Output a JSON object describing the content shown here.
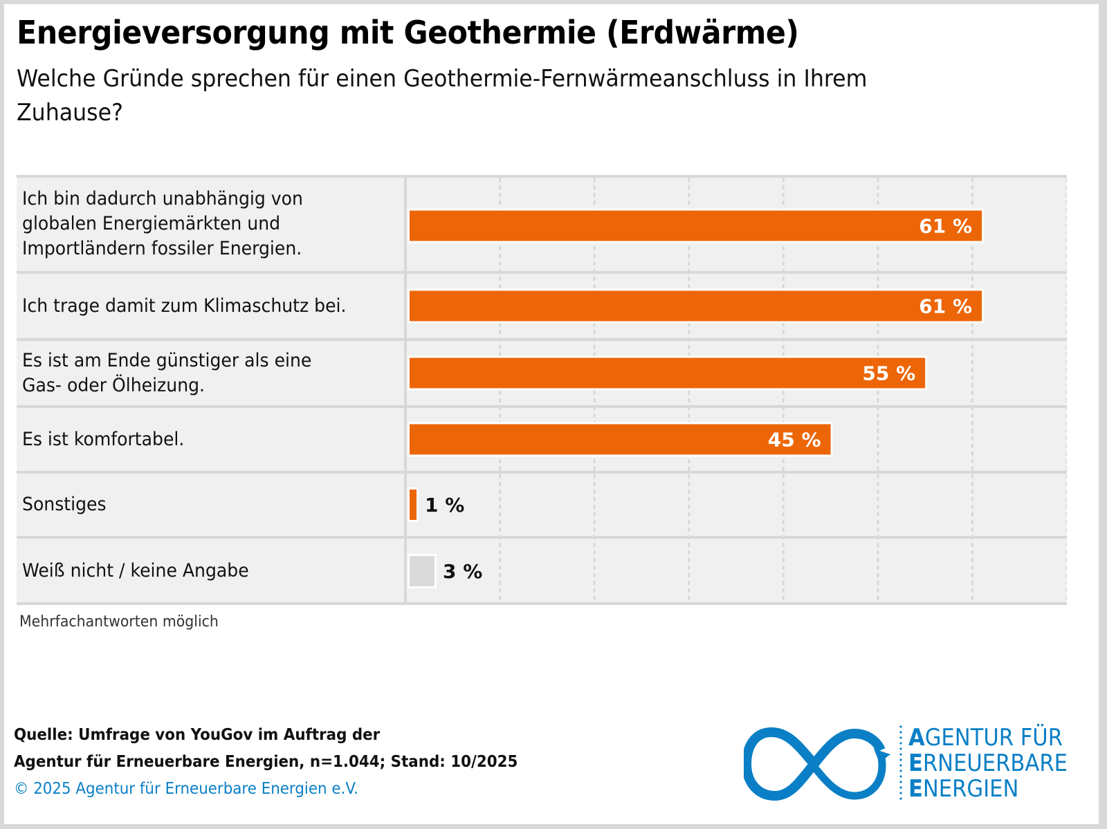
{
  "header": {
    "title": "Energieversorgung mit Geothermie (Erdwärme)",
    "subtitle": "Welche Gründe sprechen für einen Geothermie-Fernwärmeanschluss in Ihrem Zuhause?"
  },
  "colors": {
    "bar_primary": "#ec6608",
    "bar_neutral": "#dadada",
    "brand_blue": "#0a7fc6",
    "chart_background": "#f0f0f0",
    "grid": "#d8d8d8"
  },
  "chart_data": {
    "type": "bar",
    "orientation": "horizontal",
    "title": "Energieversorgung mit Geothermie (Erdwärme)",
    "subtitle": "Welche Gründe sprechen für einen Geothermie-Fernwärmeanschluss in Ihrem Zuhause?",
    "xlabel": "",
    "ylabel": "",
    "xlim": [
      0,
      70
    ],
    "grid": true,
    "grid_step": 10,
    "unit": "%",
    "categories": [
      "Ich bin dadurch unabhängig von\nglobalen Energiemärkten und\nImportländern fossiler Energien.",
      "Ich trage damit zum Klimaschutz bei.",
      "Es ist am Ende günstiger als eine\nGas- oder Ölheizung.",
      "Es ist komfortabel.",
      "Sonstiges",
      "Weiß nicht / keine Angabe"
    ],
    "values": [
      61,
      61,
      55,
      45,
      1,
      3
    ],
    "value_labels": [
      "61 %",
      "61 %",
      "55 %",
      "45 %",
      "1 %",
      "3 %"
    ],
    "bar_colors": [
      "primary",
      "primary",
      "primary",
      "primary",
      "primary",
      "neutral"
    ],
    "note": "Mehrfachantworten möglich"
  },
  "footer": {
    "source_line1": "Quelle: Umfrage von YouGov im Auftrag der",
    "source_line2": "Agentur für Erneuerbare Energien, n=1.044; Stand: 10/2025",
    "copyright": "© 2025 Agentur für Erneuerbare Energien e.V."
  },
  "logo": {
    "icon": "infinity-arrow-icon",
    "line1_initial": "A",
    "line1_rest": "GENTUR FÜR",
    "line2_initial": "E",
    "line2_rest": "RNEUERBARE",
    "line3_initial": "E",
    "line3_rest": "NERGIEN"
  }
}
